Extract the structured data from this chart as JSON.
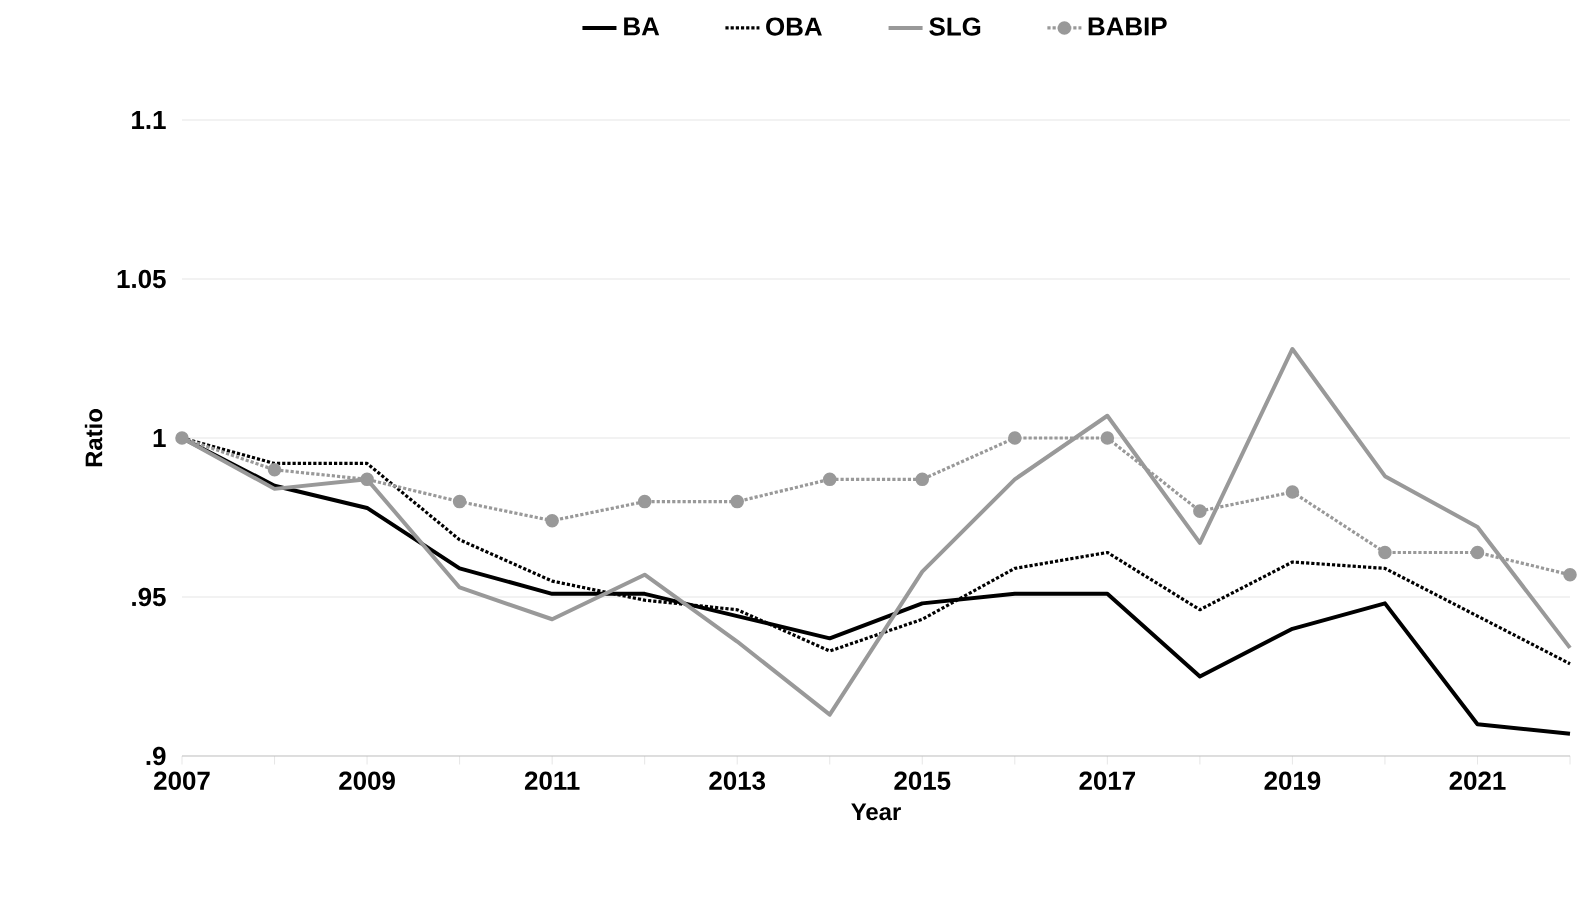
{
  "chart_data": {
    "type": "line",
    "xlabel": "Year",
    "ylabel": "Ratio",
    "x": [
      2007,
      2008,
      2009,
      2010,
      2011,
      2012,
      2013,
      2014,
      2015,
      2016,
      2017,
      2018,
      2019,
      2020,
      2021,
      2022
    ],
    "series": [
      {
        "name": "BA",
        "color": "#000000",
        "line_style": "solid",
        "marker": "none",
        "values": [
          1.0,
          0.985,
          0.978,
          0.959,
          0.951,
          0.951,
          0.944,
          0.937,
          0.948,
          0.951,
          0.951,
          0.925,
          0.94,
          0.948,
          0.91,
          0.907
        ]
      },
      {
        "name": "OBA",
        "color": "#000000",
        "line_style": "dotted",
        "marker": "none",
        "values": [
          1.0,
          0.992,
          0.992,
          0.968,
          0.955,
          0.949,
          0.946,
          0.933,
          0.943,
          0.959,
          0.964,
          0.946,
          0.961,
          0.959,
          0.944,
          0.929
        ]
      },
      {
        "name": "SLG",
        "color": "#999999",
        "line_style": "solid",
        "marker": "none",
        "values": [
          1.0,
          0.984,
          0.987,
          0.953,
          0.943,
          0.957,
          0.936,
          0.913,
          0.958,
          0.987,
          1.007,
          0.967,
          1.028,
          0.988,
          0.972,
          0.934
        ]
      },
      {
        "name": "BABIP",
        "color": "#999999",
        "line_style": "dotted",
        "marker": "circle",
        "values": [
          1.0,
          0.99,
          0.987,
          0.98,
          0.974,
          0.98,
          0.98,
          0.987,
          0.987,
          1.0,
          1.0,
          0.977,
          0.983,
          0.964,
          0.964,
          0.957
        ]
      }
    ],
    "xlim": [
      2007,
      2022
    ],
    "xticks": [
      2007,
      {
        "value": 2008,
        "label": null
      },
      2009,
      {
        "value": 2010,
        "label": null
      },
      2011,
      {
        "value": 2012,
        "label": null
      },
      2013,
      {
        "value": 2014,
        "label": null
      },
      2015,
      {
        "value": 2016,
        "label": null
      },
      2017,
      {
        "value": 2018,
        "label": null
      },
      2019,
      {
        "value": 2020,
        "label": null
      },
      2021,
      {
        "value": 2022,
        "label": null
      }
    ],
    "ylim": [
      0.9,
      1.1
    ],
    "yticks": [
      {
        "value": 0.9,
        "label": ".9"
      },
      {
        "value": 0.95,
        "label": ".95"
      },
      1,
      1.05,
      1.1
    ],
    "grid": "y",
    "legend": "top"
  }
}
